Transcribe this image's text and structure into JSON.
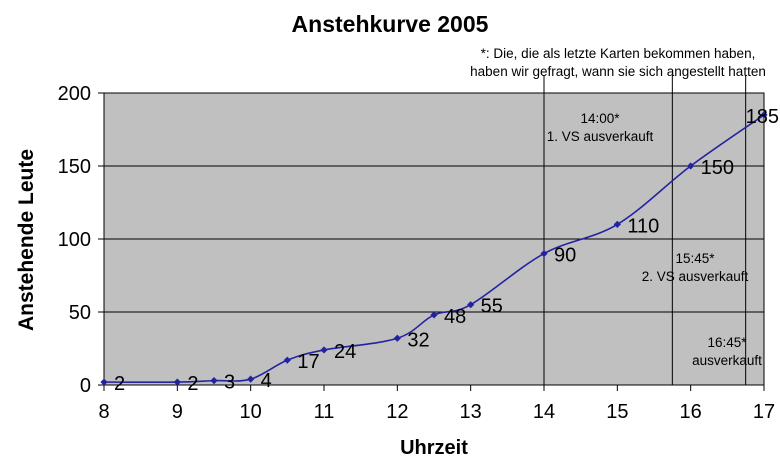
{
  "chart_data": {
    "type": "line",
    "smoothed": true,
    "title": "Anstehkurve 2005",
    "xlabel": "Uhrzeit",
    "ylabel": "Anstehende Leute",
    "footnote": [
      "*: Die, die als letzte Karten bekommen haben,",
      "haben wir gefragt, wann sie sich angestellt hatten"
    ],
    "xlim": [
      8,
      17
    ],
    "ylim": [
      0,
      200
    ],
    "x_ticks": [
      "8",
      "9",
      "10",
      "11",
      "12",
      "13",
      "14",
      "15",
      "16",
      "17"
    ],
    "y_ticks": [
      "0",
      "50",
      "100",
      "150",
      "200"
    ],
    "grid": "horizontal",
    "legend": "none",
    "plot_bg_color": "#c0c0c0",
    "line_color": "#2323a0",
    "marker": "diamond",
    "points": [
      {
        "x": 8,
        "y": 2,
        "label": "2"
      },
      {
        "x": 9,
        "y": 2,
        "label": "2"
      },
      {
        "x": 9.5,
        "y": 3,
        "label": "3"
      },
      {
        "x": 10,
        "y": 4,
        "label": "4"
      },
      {
        "x": 10.5,
        "y": 17,
        "label": "17"
      },
      {
        "x": 11,
        "y": 24,
        "label": "24"
      },
      {
        "x": 12,
        "y": 32,
        "label": "32"
      },
      {
        "x": 12.5,
        "y": 48,
        "label": "48"
      },
      {
        "x": 13,
        "y": 55,
        "label": "55"
      },
      {
        "x": 14,
        "y": 90,
        "label": "90"
      },
      {
        "x": 15,
        "y": 110,
        "label": "110"
      },
      {
        "x": 16,
        "y": 150,
        "label": "150"
      },
      {
        "x": 17,
        "y": 185,
        "label": "185"
      }
    ],
    "event_lines": [
      {
        "x": 14.0,
        "lines": [
          "14:00*",
          "1. VS ausverkauft"
        ]
      },
      {
        "x": 15.75,
        "lines": [
          "15:45*",
          "2. VS ausverkauft"
        ]
      },
      {
        "x": 16.75,
        "lines": [
          "16:45*",
          "ausverkauft"
        ]
      }
    ]
  }
}
